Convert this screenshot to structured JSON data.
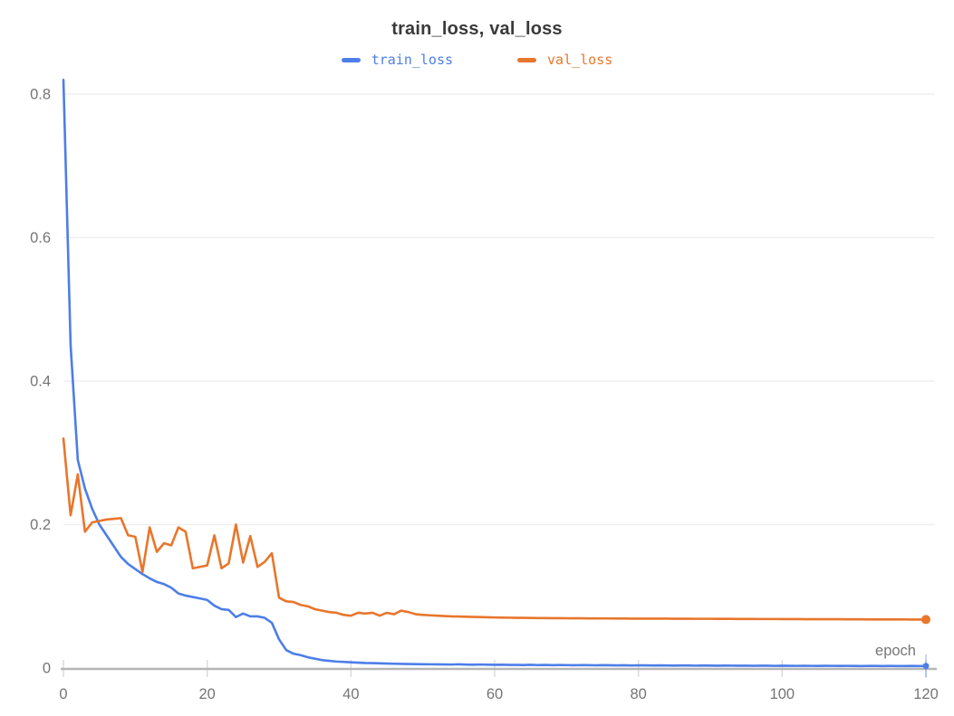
{
  "chart": {
    "style": {
      "background_color": "#ffffff",
      "title_color": "#3a3a3a",
      "axis_label_color": "#757575",
      "gridline_color": "#efefef",
      "tick_color": "#d9d9d9",
      "axis_line_color": "#b5b5b5"
    }
  },
  "chart_data": {
    "type": "line",
    "title": "train_loss, val_loss",
    "xlabel": "epoch",
    "ylabel": "",
    "xlim": [
      0,
      120
    ],
    "ylim": [
      0,
      0.8
    ],
    "grid": "horizontal",
    "legend_position": "top",
    "x_ticks": [
      0,
      20,
      40,
      60,
      80,
      100,
      120
    ],
    "x_tick_labels": [
      "0",
      "20",
      "40",
      "60",
      "80",
      "100",
      "120"
    ],
    "y_ticks": [
      0,
      0.2,
      0.4,
      0.6,
      0.8
    ],
    "y_tick_labels": [
      "0",
      "0.2",
      "0.4",
      "0.6",
      "0.8"
    ],
    "x_start": 0,
    "x_step": 1,
    "series": [
      {
        "name": "train_loss",
        "color": "#4d7ee8",
        "end_marker": "dot",
        "values": [
          0.82,
          0.45,
          0.29,
          0.25,
          0.222,
          0.2,
          0.185,
          0.17,
          0.155,
          0.145,
          0.138,
          0.131,
          0.125,
          0.12,
          0.117,
          0.112,
          0.104,
          0.101,
          0.099,
          0.097,
          0.095,
          0.087,
          0.082,
          0.081,
          0.071,
          0.076,
          0.072,
          0.072,
          0.07,
          0.063,
          0.04,
          0.025,
          0.02,
          0.018,
          0.015,
          0.013,
          0.011,
          0.01,
          0.009,
          0.0085,
          0.008,
          0.0075,
          0.007,
          0.0068,
          0.0065,
          0.0062,
          0.006,
          0.0058,
          0.0056,
          0.0055,
          0.0053,
          0.0052,
          0.0051,
          0.005,
          0.0049,
          0.0052,
          0.0048,
          0.0047,
          0.0049,
          0.0046,
          0.0045,
          0.0046,
          0.0043,
          0.0044,
          0.0042,
          0.0045,
          0.0041,
          0.0043,
          0.004,
          0.0042,
          0.0041,
          0.0039,
          0.0041,
          0.004,
          0.0038,
          0.004,
          0.0039,
          0.0037,
          0.0039,
          0.0036,
          0.0038,
          0.0037,
          0.0035,
          0.0037,
          0.0036,
          0.0034,
          0.0036,
          0.0035,
          0.0033,
          0.0035,
          0.0034,
          0.0032,
          0.0034,
          0.0033,
          0.0032,
          0.0033,
          0.0031,
          0.0033,
          0.0032,
          0.003,
          0.0032,
          0.0031,
          0.003,
          0.0031,
          0.003,
          0.0029,
          0.0031,
          0.003,
          0.0029,
          0.003,
          0.0029,
          0.0028,
          0.003,
          0.0029,
          0.0028,
          0.0029,
          0.0028,
          0.0027,
          0.0029,
          0.0028,
          0.0028
        ]
      },
      {
        "name": "val_loss",
        "color": "#e8762c",
        "end_marker": "dot",
        "values": [
          0.32,
          0.213,
          0.27,
          0.19,
          0.203,
          0.205,
          0.207,
          0.208,
          0.209,
          0.185,
          0.183,
          0.134,
          0.196,
          0.162,
          0.174,
          0.171,
          0.196,
          0.19,
          0.139,
          0.141,
          0.143,
          0.185,
          0.139,
          0.146,
          0.2,
          0.147,
          0.184,
          0.141,
          0.148,
          0.16,
          0.098,
          0.093,
          0.092,
          0.088,
          0.086,
          0.082,
          0.08,
          0.078,
          0.077,
          0.074,
          0.073,
          0.077,
          0.076,
          0.077,
          0.073,
          0.077,
          0.075,
          0.08,
          0.078,
          0.075,
          0.074,
          0.0735,
          0.073,
          0.0725,
          0.072,
          0.0718,
          0.0715,
          0.0712,
          0.071,
          0.0708,
          0.0705,
          0.0703,
          0.0702,
          0.07,
          0.0699,
          0.0698,
          0.0697,
          0.0696,
          0.0695,
          0.0695,
          0.0694,
          0.0693,
          0.0693,
          0.0692,
          0.0692,
          0.0691,
          0.0691,
          0.069,
          0.069,
          0.0689,
          0.0689,
          0.0689,
          0.0688,
          0.0688,
          0.0688,
          0.0687,
          0.0687,
          0.0687,
          0.0686,
          0.0686,
          0.0686,
          0.0685,
          0.0685,
          0.0685,
          0.0684,
          0.0684,
          0.0684,
          0.0683,
          0.0683,
          0.0683,
          0.0682,
          0.0682,
          0.0682,
          0.0681,
          0.0681,
          0.0681,
          0.068,
          0.068,
          0.068,
          0.0679,
          0.0679,
          0.0679,
          0.0678,
          0.0678,
          0.0678,
          0.0677,
          0.0677,
          0.0677,
          0.0676,
          0.0676,
          0.0676
        ]
      }
    ]
  }
}
